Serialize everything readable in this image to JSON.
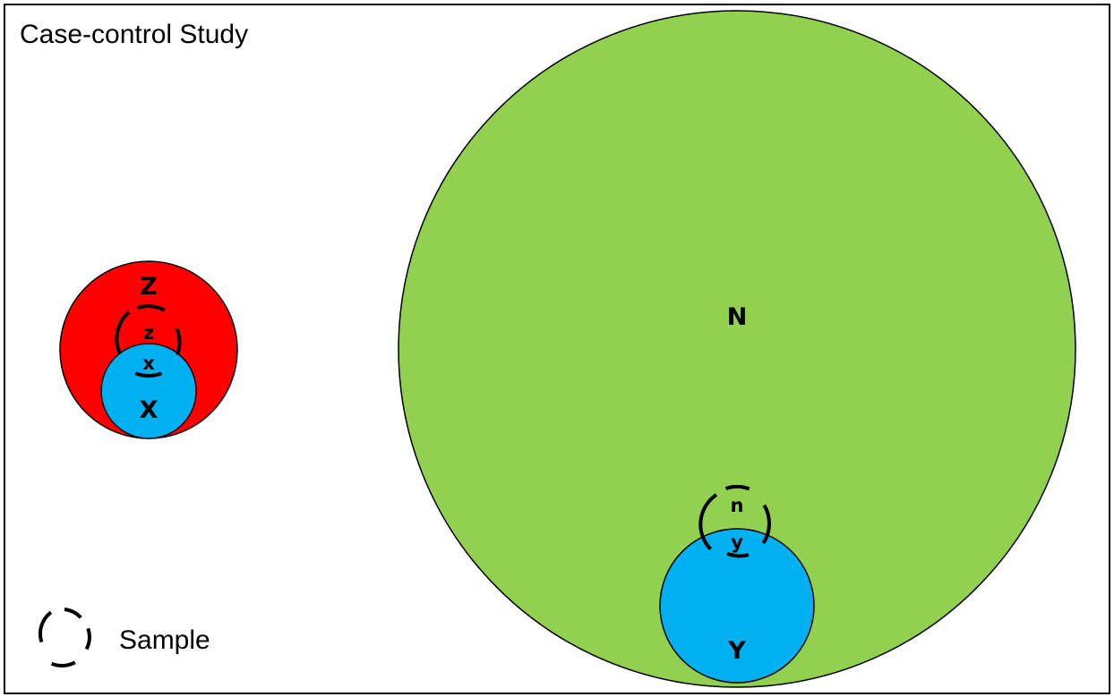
{
  "title": "Case-control Study",
  "legend": {
    "label": "Sample",
    "icon": "dashed-circle-icon"
  },
  "labels": {
    "total_noncases": "N",
    "noncase_sample": "n",
    "noncase_sample_exposed": "y",
    "noncase_exposed": "Y",
    "total_cases": "Z",
    "case_sample": "z",
    "case_sample_exposed": "x",
    "case_exposed": "X"
  },
  "colors": {
    "cases": "#ff0000",
    "noncases": "#92d050",
    "exposed": "#00b0f0",
    "outline": "#000000"
  }
}
